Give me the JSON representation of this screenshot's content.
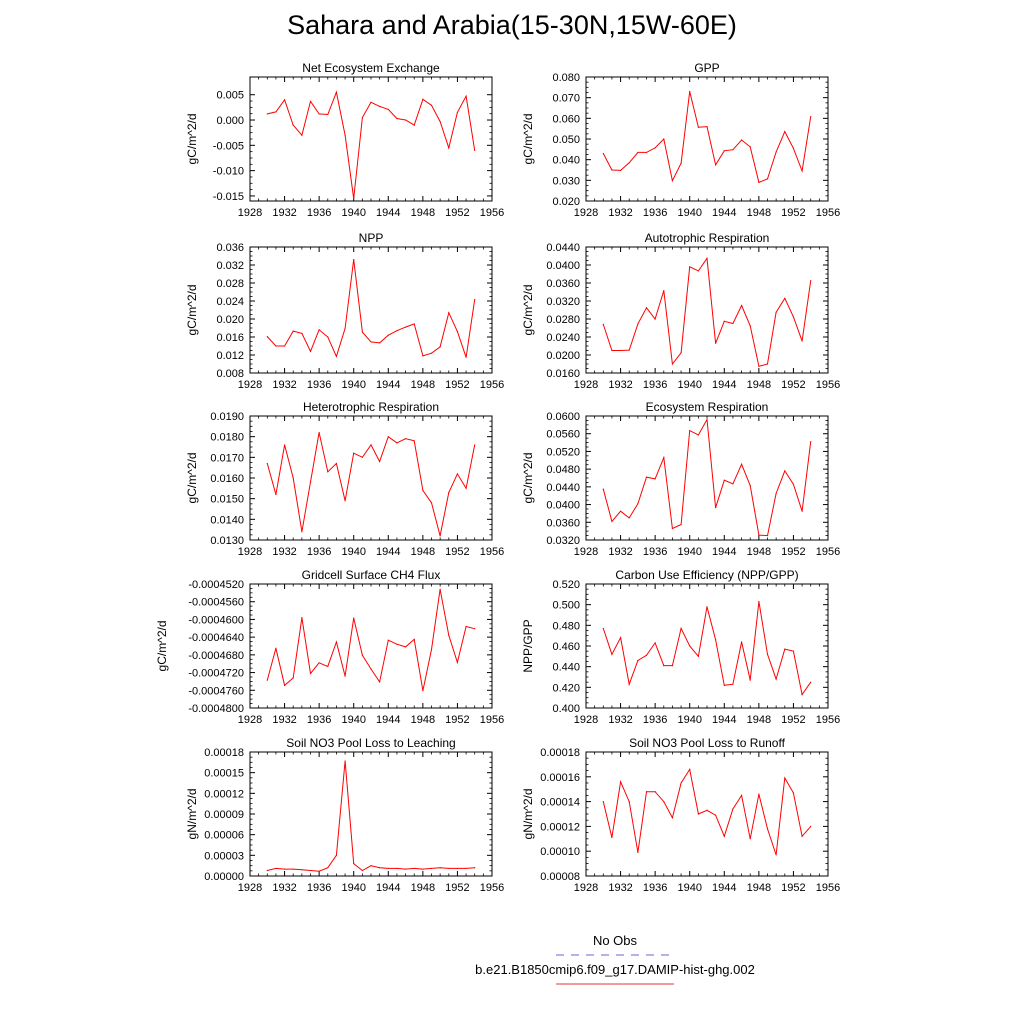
{
  "title": "Sahara and Arabia(15-30N,15W-60E)",
  "legend": {
    "obs_label": "No Obs",
    "obs_color": "#6666dd",
    "case_label": "b.e21.B1850cmip6.f09_g17.DAMIP-hist-ghg.002",
    "case_color": "#e8333a"
  },
  "line_color": "#ff0000",
  "x_ticks": [
    "1928",
    "1932",
    "1936",
    "1940",
    "1944",
    "1948",
    "1952",
    "1956"
  ],
  "chart_data": [
    {
      "type": "line",
      "title": "Net Ecosystem Exchange",
      "ylabel": "gC/m^2/d",
      "xlim": [
        1928,
        1956
      ],
      "ylim": [
        -0.016,
        0.0085
      ],
      "y_ticks": [
        "0.005",
        "0.000",
        "-0.005",
        "-0.010",
        "-0.015"
      ],
      "y_tick_values": [
        0.005,
        0.0,
        -0.005,
        -0.01,
        -0.015
      ],
      "x": [
        1930,
        1931,
        1932,
        1933,
        1934,
        1935,
        1936,
        1937,
        1938,
        1939,
        1940,
        1941,
        1942,
        1943,
        1944,
        1945,
        1946,
        1947,
        1948,
        1949,
        1950,
        1951,
        1952,
        1953,
        1954
      ],
      "values": [
        0.0012,
        0.0016,
        0.004,
        -0.001,
        -0.003,
        0.0037,
        0.0012,
        0.0011,
        0.0055,
        -0.003,
        -0.0155,
        0.0005,
        0.0035,
        0.0027,
        0.0021,
        0.0003,
        0.0,
        -0.001,
        0.0041,
        0.0029,
        -0.0003,
        -0.0055,
        0.0015,
        0.0047,
        -0.006
      ]
    },
    {
      "type": "line",
      "title": "GPP",
      "ylabel": "gC/m^2/d",
      "xlim": [
        1928,
        1956
      ],
      "ylim": [
        0.02,
        0.08
      ],
      "y_ticks": [
        "0.080",
        "0.070",
        "0.060",
        "0.050",
        "0.040",
        "0.030",
        "0.020"
      ],
      "y_tick_values": [
        0.08,
        0.07,
        0.06,
        0.05,
        0.04,
        0.03,
        0.02
      ],
      "x": [
        1930,
        1931,
        1932,
        1933,
        1934,
        1935,
        1936,
        1937,
        1938,
        1939,
        1940,
        1941,
        1942,
        1943,
        1944,
        1945,
        1946,
        1947,
        1948,
        1949,
        1950,
        1951,
        1952,
        1953,
        1954
      ],
      "values": [
        0.043,
        0.035,
        0.0348,
        0.0385,
        0.0435,
        0.0435,
        0.0457,
        0.05,
        0.0298,
        0.0383,
        0.073,
        0.0557,
        0.056,
        0.0375,
        0.0443,
        0.0448,
        0.0495,
        0.0462,
        0.029,
        0.0307,
        0.0437,
        0.0536,
        0.0455,
        0.0345,
        0.0608
      ]
    },
    {
      "type": "line",
      "title": "NPP",
      "ylabel": "gC/m^2/d",
      "xlim": [
        1928,
        1956
      ],
      "ylim": [
        0.008,
        0.036
      ],
      "y_ticks": [
        "0.036",
        "0.032",
        "0.028",
        "0.024",
        "0.020",
        "0.016",
        "0.012",
        "0.008"
      ],
      "y_tick_values": [
        0.036,
        0.032,
        0.028,
        0.024,
        0.02,
        0.016,
        0.012,
        0.008
      ],
      "x": [
        1930,
        1931,
        1932,
        1933,
        1934,
        1935,
        1936,
        1937,
        1938,
        1939,
        1940,
        1941,
        1942,
        1943,
        1944,
        1945,
        1946,
        1947,
        1948,
        1949,
        1950,
        1951,
        1952,
        1953,
        1954
      ],
      "values": [
        0.0161,
        0.014,
        0.014,
        0.0173,
        0.0168,
        0.0128,
        0.0176,
        0.016,
        0.0117,
        0.0179,
        0.0332,
        0.0171,
        0.0149,
        0.0147,
        0.0164,
        0.0174,
        0.0182,
        0.0189,
        0.0118,
        0.0124,
        0.0138,
        0.0214,
        0.0172,
        0.0115,
        0.0243
      ]
    },
    {
      "type": "line",
      "title": "Autotrophic Respiration",
      "ylabel": "gC/m^2/d",
      "xlim": [
        1928,
        1956
      ],
      "ylim": [
        0.016,
        0.044
      ],
      "y_ticks": [
        "0.0440",
        "0.0400",
        "0.0360",
        "0.0320",
        "0.0280",
        "0.0240",
        "0.0200",
        "0.0160"
      ],
      "y_tick_values": [
        0.044,
        0.04,
        0.036,
        0.032,
        0.028,
        0.024,
        0.02,
        0.016
      ],
      "x": [
        1930,
        1931,
        1932,
        1933,
        1934,
        1935,
        1936,
        1937,
        1938,
        1939,
        1940,
        1941,
        1942,
        1943,
        1944,
        1945,
        1946,
        1947,
        1948,
        1949,
        1950,
        1951,
        1952,
        1953,
        1954
      ],
      "values": [
        0.0268,
        0.021,
        0.021,
        0.0211,
        0.0269,
        0.0305,
        0.028,
        0.0343,
        0.018,
        0.0205,
        0.0396,
        0.0387,
        0.0415,
        0.0226,
        0.0275,
        0.027,
        0.031,
        0.0265,
        0.0175,
        0.018,
        0.0295,
        0.0326,
        0.0285,
        0.0231,
        0.0365
      ]
    },
    {
      "type": "line",
      "title": "Heterotrophic Respiration",
      "ylabel": "gC/m^2/d",
      "xlim": [
        1928,
        1956
      ],
      "ylim": [
        0.013,
        0.019
      ],
      "y_ticks": [
        "0.0190",
        "0.0180",
        "0.0170",
        "0.0160",
        "0.0150",
        "0.0140",
        "0.0130"
      ],
      "y_tick_values": [
        0.019,
        0.018,
        0.017,
        0.016,
        0.015,
        0.014,
        0.013
      ],
      "x": [
        1930,
        1931,
        1932,
        1933,
        1934,
        1935,
        1936,
        1937,
        1938,
        1939,
        1940,
        1941,
        1942,
        1943,
        1944,
        1945,
        1946,
        1947,
        1948,
        1949,
        1950,
        1951,
        1952,
        1953,
        1954
      ],
      "values": [
        0.0167,
        0.0152,
        0.0176,
        0.016,
        0.0134,
        0.0158,
        0.0182,
        0.0163,
        0.0167,
        0.0149,
        0.0172,
        0.017,
        0.0176,
        0.0168,
        0.018,
        0.0177,
        0.0179,
        0.0178,
        0.0154,
        0.0148,
        0.0132,
        0.0153,
        0.0162,
        0.0155,
        0.0176
      ]
    },
    {
      "type": "line",
      "title": "Ecosystem Respiration",
      "ylabel": "gC/m^2/d",
      "xlim": [
        1928,
        1956
      ],
      "ylim": [
        0.032,
        0.06
      ],
      "y_ticks": [
        "0.0600",
        "0.0560",
        "0.0520",
        "0.0480",
        "0.0440",
        "0.0400",
        "0.0360",
        "0.0320"
      ],
      "y_tick_values": [
        0.06,
        0.056,
        0.052,
        0.048,
        0.044,
        0.04,
        0.036,
        0.032
      ],
      "x": [
        1930,
        1931,
        1932,
        1933,
        1934,
        1935,
        1936,
        1937,
        1938,
        1939,
        1940,
        1941,
        1942,
        1943,
        1944,
        1945,
        1946,
        1947,
        1948,
        1949,
        1950,
        1951,
        1952,
        1953,
        1954
      ],
      "values": [
        0.0435,
        0.0362,
        0.0385,
        0.037,
        0.0402,
        0.0462,
        0.0458,
        0.0506,
        0.0346,
        0.0355,
        0.0567,
        0.0557,
        0.0592,
        0.0393,
        0.0455,
        0.0447,
        0.0491,
        0.0443,
        0.0331,
        0.033,
        0.0425,
        0.0476,
        0.0446,
        0.0385,
        0.0542
      ]
    },
    {
      "type": "line",
      "title": "Gridcell Surface CH4 Flux",
      "ylabel": "gC/m^2/d",
      "xlim": [
        1928,
        1956
      ],
      "ylim": [
        -0.00048,
        -0.000452
      ],
      "y_ticks": [
        "-0.0004520",
        "-0.0004560",
        "-0.0004600",
        "-0.0004640",
        "-0.0004680",
        "-0.0004720",
        "-0.0004760",
        "-0.0004800"
      ],
      "y_tick_values": [
        -0.000452,
        -0.000456,
        -0.00046,
        -0.000464,
        -0.000468,
        -0.000472,
        -0.000476,
        -0.00048
      ],
      "x": [
        1930,
        1931,
        1932,
        1933,
        1934,
        1935,
        1936,
        1937,
        1938,
        1939,
        1940,
        1941,
        1942,
        1943,
        1944,
        1945,
        1946,
        1947,
        1948,
        1949,
        1950,
        1951,
        1952,
        1953,
        1954
      ],
      "values": [
        -0.0004737,
        -0.0004665,
        -0.0004749,
        -0.0004732,
        -0.0004596,
        -0.0004722,
        -0.0004698,
        -0.0004706,
        -0.0004651,
        -0.0004728,
        -0.0004597,
        -0.0004681,
        -0.0004712,
        -0.0004741,
        -0.0004647,
        -0.0004656,
        -0.0004662,
        -0.0004645,
        -0.0004761,
        -0.0004668,
        -0.0004532,
        -0.0004636,
        -0.0004697,
        -0.0004616,
        -0.0004621
      ]
    },
    {
      "type": "line",
      "title": "Carbon Use Efficiency (NPP/GPP)",
      "ylabel": "NPP/GPP",
      "xlim": [
        1928,
        1956
      ],
      "ylim": [
        0.4,
        0.52
      ],
      "y_ticks": [
        "0.520",
        "0.500",
        "0.480",
        "0.460",
        "0.440",
        "0.420",
        "0.400"
      ],
      "y_tick_values": [
        0.52,
        0.5,
        0.48,
        0.46,
        0.44,
        0.42,
        0.4
      ],
      "x": [
        1930,
        1931,
        1932,
        1933,
        1934,
        1935,
        1936,
        1937,
        1938,
        1939,
        1940,
        1941,
        1942,
        1943,
        1944,
        1945,
        1946,
        1947,
        1948,
        1949,
        1950,
        1951,
        1952,
        1953,
        1954
      ],
      "values": [
        0.477,
        0.452,
        0.468,
        0.423,
        0.446,
        0.451,
        0.463,
        0.441,
        0.441,
        0.477,
        0.46,
        0.45,
        0.498,
        0.466,
        0.422,
        0.423,
        0.464,
        0.427,
        0.503,
        0.452,
        0.428,
        0.457,
        0.455,
        0.413,
        0.425
      ]
    },
    {
      "type": "line",
      "title": "Soil NO3 Pool Loss to Leaching",
      "ylabel": "gN/m^2/d",
      "xlim": [
        1928,
        1956
      ],
      "ylim": [
        0.0,
        0.00018
      ],
      "y_ticks": [
        "0.00018",
        "0.00015",
        "0.00012",
        "0.00009",
        "0.00006",
        "0.00003",
        "0.00000"
      ],
      "y_tick_values": [
        0.00018,
        0.00015,
        0.00012,
        9e-05,
        6e-05,
        3e-05,
        0.0
      ],
      "x": [
        1930,
        1931,
        1932,
        1933,
        1934,
        1935,
        1936,
        1937,
        1938,
        1939,
        1940,
        1941,
        1942,
        1943,
        1944,
        1945,
        1946,
        1947,
        1948,
        1949,
        1950,
        1951,
        1952,
        1953,
        1954
      ],
      "values": [
        8e-06,
        1.1e-05,
        1e-05,
        1e-05,
        9e-06,
        8e-06,
        7e-06,
        1.2e-05,
        3e-05,
        0.000167,
        1.8e-05,
        8e-06,
        1.5e-05,
        1.2e-05,
        1.1e-05,
        1.1e-05,
        1e-05,
        1.1e-05,
        1e-05,
        1.1e-05,
        1.2e-05,
        1.1e-05,
        1.1e-05,
        1.1e-05,
        1.2e-05
      ]
    },
    {
      "type": "line",
      "title": "Soil NO3 Pool Loss to Runoff",
      "ylabel": "gN/m^2/d",
      "xlim": [
        1928,
        1956
      ],
      "ylim": [
        8e-05,
        0.00018
      ],
      "y_ticks": [
        "0.00018",
        "0.00016",
        "0.00014",
        "0.00012",
        "0.00010",
        "0.00008"
      ],
      "y_tick_values": [
        0.00018,
        0.00016,
        0.00014,
        0.00012,
        0.0001,
        8e-05
      ],
      "x": [
        1930,
        1931,
        1932,
        1933,
        1934,
        1935,
        1936,
        1937,
        1938,
        1939,
        1940,
        1941,
        1942,
        1943,
        1944,
        1945,
        1946,
        1947,
        1948,
        1949,
        1950,
        1951,
        1952,
        1953,
        1954
      ],
      "values": [
        0.00014,
        0.000111,
        0.000156,
        0.00014,
        9.9e-05,
        0.000148,
        0.000148,
        0.00014,
        0.000127,
        0.000155,
        0.000166,
        0.00013,
        0.000133,
        0.000129,
        0.000112,
        0.000134,
        0.000145,
        0.00011,
        0.000146,
        0.000118,
        9.7e-05,
        0.000159,
        0.000147,
        0.000112,
        0.00012
      ]
    }
  ]
}
